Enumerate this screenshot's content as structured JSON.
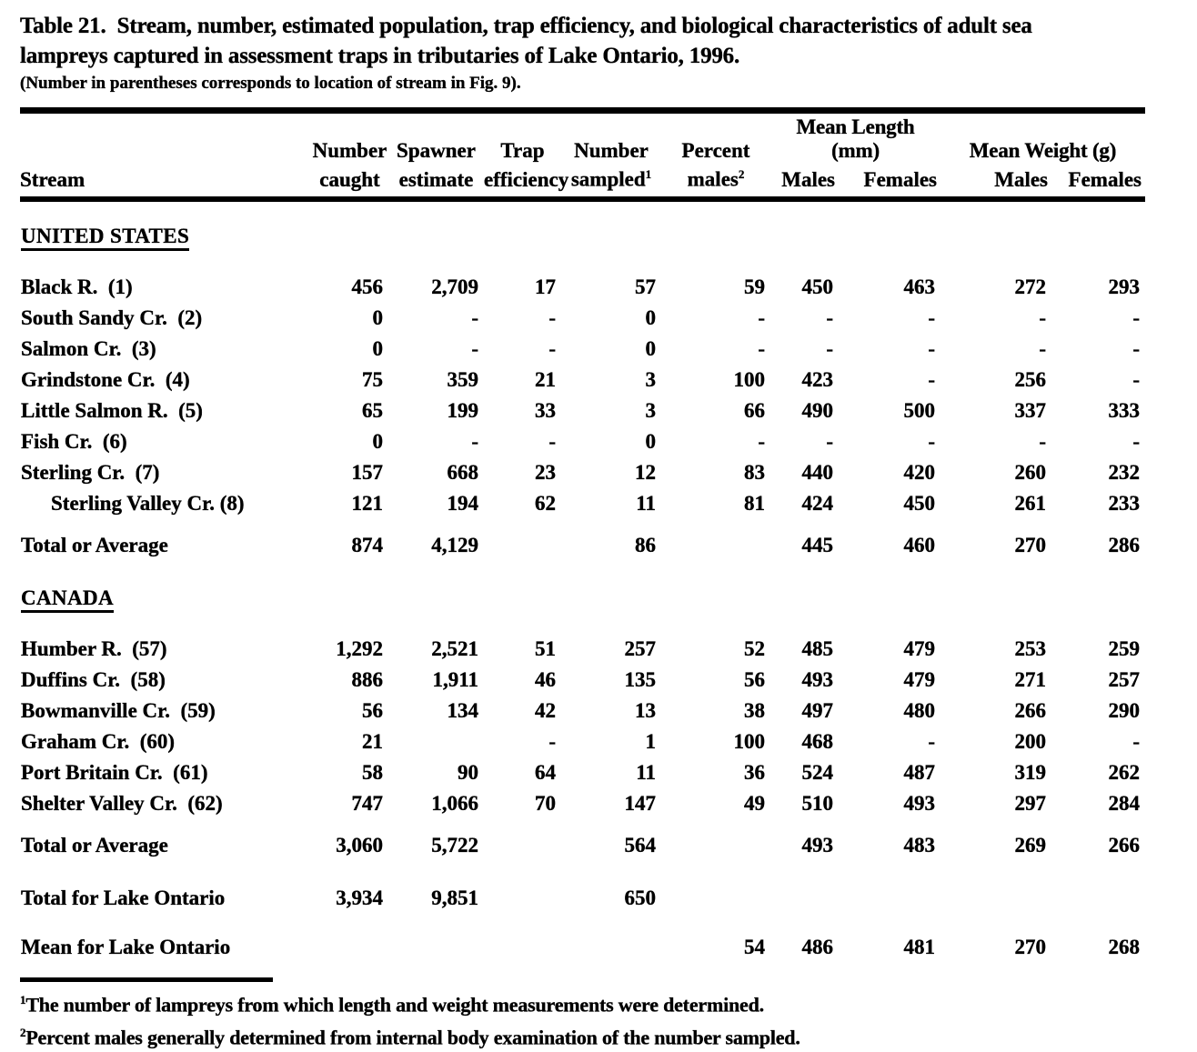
{
  "colors": {
    "ink": "#000000",
    "paper": "#ffffff"
  },
  "title": {
    "line1": "Table 21.  Stream, number, estimated population, trap efficiency, and biological characteristics of adult sea",
    "line2": "lampreys captured in assessment traps in tributaries of Lake Ontario, 1996.",
    "note": "(Number in parentheses corresponds to location of stream in Fig. 9)."
  },
  "header": {
    "stream": "Stream",
    "cols": [
      {
        "l1": "Number",
        "l2": "caught"
      },
      {
        "l1": "Spawner",
        "l2": "estimate"
      },
      {
        "l1": "Trap",
        "l2": "efficiency"
      },
      {
        "l1": "Number",
        "l2": "sampled",
        "sup": "1"
      },
      {
        "l1": "Percent",
        "l2": "males",
        "sup": "2"
      }
    ],
    "groups": [
      {
        "label": "Mean Length (mm)"
      },
      {
        "label": "Mean Weight (g)"
      }
    ],
    "subcols": [
      "Males",
      "Females",
      "Males",
      "Females"
    ]
  },
  "table": {
    "sections": [
      {
        "heading": "UNITED STATES",
        "rows": [
          {
            "name": "Black R.  (1)",
            "indent": false,
            "cells": [
              "456",
              "2,709",
              "17",
              "57",
              "59",
              "450",
              "463",
              "272",
              "293"
            ]
          },
          {
            "name": "South Sandy Cr.  (2)",
            "indent": false,
            "cells": [
              "0",
              "-",
              "-",
              "0",
              "-",
              "-",
              "-",
              "-",
              "-"
            ]
          },
          {
            "name": "Salmon Cr.  (3)",
            "indent": false,
            "cells": [
              "0",
              "-",
              "-",
              "0",
              "-",
              "-",
              "-",
              "-",
              "-"
            ]
          },
          {
            "name": "Grindstone Cr.  (4)",
            "indent": false,
            "cells": [
              "75",
              "359",
              "21",
              "3",
              "100",
              "423",
              "-",
              "256",
              "-"
            ]
          },
          {
            "name": "Little Salmon R.  (5)",
            "indent": false,
            "cells": [
              "65",
              "199",
              "33",
              "3",
              "66",
              "490",
              "500",
              "337",
              "333"
            ]
          },
          {
            "name": "Fish Cr.  (6)",
            "indent": false,
            "cells": [
              "0",
              "-",
              "-",
              "0",
              "-",
              "-",
              "-",
              "-",
              "-"
            ]
          },
          {
            "name": "Sterling Cr.  (7)",
            "indent": false,
            "cells": [
              "157",
              "668",
              "23",
              "12",
              "83",
              "440",
              "420",
              "260",
              "232"
            ]
          },
          {
            "name": "Sterling Valley Cr. (8)",
            "indent": true,
            "cells": [
              "121",
              "194",
              "62",
              "11",
              "81",
              "424",
              "450",
              "261",
              "233"
            ]
          }
        ],
        "total": {
          "name": "Total or Average",
          "cells": [
            "874",
            "4,129",
            "",
            "86",
            "",
            "445",
            "460",
            "270",
            "286"
          ]
        }
      },
      {
        "heading": "CANADA",
        "rows": [
          {
            "name": "Humber R.  (57)",
            "indent": false,
            "cells": [
              "1,292",
              "2,521",
              "51",
              "257",
              "52",
              "485",
              "479",
              "253",
              "259"
            ]
          },
          {
            "name": "Duffins Cr.  (58)",
            "indent": false,
            "cells": [
              "886",
              "1,911",
              "46",
              "135",
              "56",
              "493",
              "479",
              "271",
              "257"
            ]
          },
          {
            "name": "Bowmanville Cr.  (59)",
            "indent": false,
            "cells": [
              "56",
              "134",
              "42",
              "13",
              "38",
              "497",
              "480",
              "266",
              "290"
            ]
          },
          {
            "name": "Graham Cr.  (60)",
            "indent": false,
            "cells": [
              "21",
              "",
              "-",
              "1",
              "100",
              "468",
              "-",
              "200",
              "-"
            ]
          },
          {
            "name": "Port Britain Cr.  (61)",
            "indent": false,
            "cells": [
              "58",
              "90",
              "64",
              "11",
              "36",
              "524",
              "487",
              "319",
              "262"
            ]
          },
          {
            "name": "Shelter Valley Cr.  (62)",
            "indent": false,
            "cells": [
              "747",
              "1,066",
              "70",
              "147",
              "49",
              "510",
              "493",
              "297",
              "284"
            ]
          }
        ],
        "total": {
          "name": "Total or Average",
          "cells": [
            "3,060",
            "5,722",
            "",
            "564",
            "",
            "493",
            "483",
            "269",
            "266"
          ]
        }
      }
    ],
    "grand_rows": [
      {
        "name": "Total for Lake Ontario",
        "cells": [
          "3,934",
          "9,851",
          "",
          "650",
          "",
          "",
          "",
          "",
          ""
        ]
      },
      {
        "name": "Mean for Lake Ontario",
        "cells": [
          "",
          "",
          "",
          "",
          "54",
          "486",
          "481",
          "270",
          "268"
        ]
      }
    ]
  },
  "footnotes": [
    {
      "sup": "1",
      "text": "The number of lampreys from which length and weight measurements were determined."
    },
    {
      "sup": "2",
      "text": "Percent males generally determined from internal body examination of the number sampled."
    }
  ]
}
